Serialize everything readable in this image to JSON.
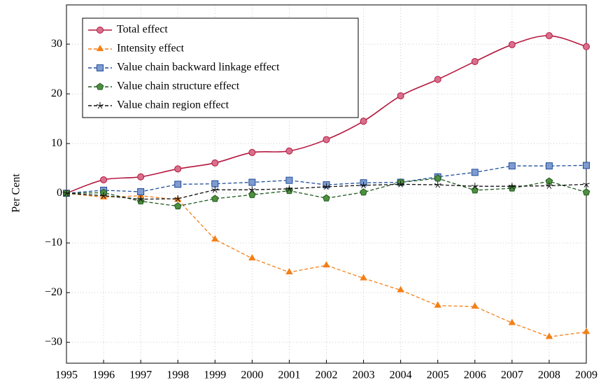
{
  "chart_data": {
    "type": "line",
    "y_label": "Per Cent",
    "x": [
      1995,
      1996,
      1997,
      1998,
      1999,
      2000,
      2001,
      2002,
      2003,
      2004,
      2005,
      2006,
      2007,
      2008,
      2009
    ],
    "series": [
      {
        "name": "Total effect",
        "color": "#b5173f",
        "marker": "circle",
        "dash": false,
        "smooth": true,
        "values": [
          0,
          2.7,
          3.3,
          4.9,
          6.1,
          8.2,
          8.5,
          10.8,
          14.5,
          19.6,
          22.9,
          26.5,
          29.9,
          31.7,
          29.5
        ]
      },
      {
        "name": "Intensity effect",
        "color": "#f57f17",
        "marker": "triangle",
        "dash": true,
        "smooth": false,
        "values": [
          0,
          -0.8,
          -0.5,
          -1.3,
          -9.3,
          -13.1,
          -15.9,
          -14.5,
          -17.1,
          -19.5,
          -22.6,
          -22.8,
          -26.1,
          -28.9,
          -27.9
        ]
      },
      {
        "name": "Value chain backward linkage effect",
        "color": "#1f4e9a",
        "marker": "square",
        "dash": true,
        "smooth": false,
        "values": [
          0,
          0.6,
          0.3,
          1.8,
          1.9,
          2.2,
          2.6,
          1.7,
          2.1,
          2.2,
          3.3,
          4.2,
          5.5,
          5.5,
          5.6
        ]
      },
      {
        "name": "Value chain structure effect",
        "color": "#1e5a1e",
        "marker": "pentagon",
        "dash": true,
        "smooth": false,
        "values": [
          0,
          0.1,
          -1.6,
          -2.6,
          -1.1,
          -0.3,
          0.5,
          -1.0,
          0.2,
          2.2,
          3.0,
          0.6,
          1.0,
          2.4,
          0.2
        ]
      },
      {
        "name": "Value chain region effect",
        "color": "#111111",
        "marker": "star",
        "dash": true,
        "smooth": false,
        "values": [
          0,
          -0.5,
          -1.2,
          -1.1,
          0.7,
          0.7,
          0.9,
          1.3,
          1.6,
          1.8,
          1.7,
          1.4,
          1.4,
          1.5,
          1.8
        ]
      }
    ],
    "xlim": [
      1995,
      2009
    ],
    "xticks": [
      1995,
      1996,
      1997,
      1998,
      1999,
      2000,
      2001,
      2002,
      2003,
      2004,
      2005,
      2006,
      2007,
      2008,
      2009
    ],
    "ylim": [
      -34.2,
      37.9
    ],
    "yticks": [
      {
        "value": -30,
        "label": "−30"
      },
      {
        "value": -20,
        "label": "−20"
      },
      {
        "value": -10,
        "label": "−10"
      },
      0,
      10,
      20,
      30
    ],
    "grid": true,
    "legend": "top-left"
  }
}
